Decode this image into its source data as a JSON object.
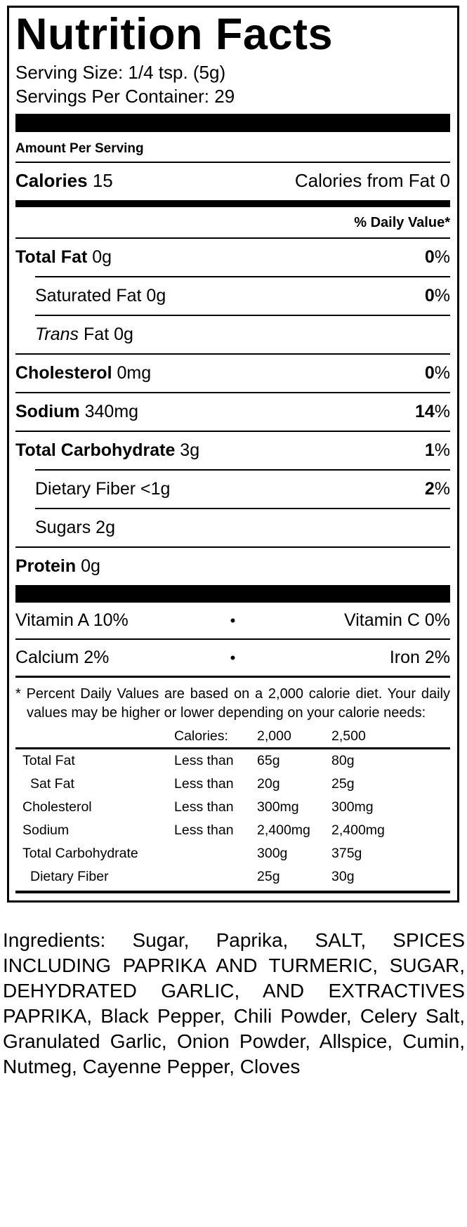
{
  "label": {
    "title": "Nutrition Facts",
    "serving_size": "Serving Size: 1/4 tsp. (5g)",
    "servings_per_container": "Servings Per Container: 29",
    "amount_per_serving": "Amount Per Serving",
    "calories": {
      "label": "Calories",
      "value": "15",
      "from_fat_label": "Calories from Fat",
      "from_fat_value": "0"
    },
    "daily_value_header": "% Daily Value*",
    "nutrients": [
      {
        "name": "Total Fat",
        "amount": "0g",
        "dv": "0%",
        "bold": true,
        "indent": false
      },
      {
        "name": "Saturated Fat",
        "amount": "0g",
        "dv": "0%",
        "bold": false,
        "indent": true
      },
      {
        "name_italic": "Trans",
        "name": "Fat",
        "amount": "0g",
        "dv": null,
        "bold": false,
        "indent": true
      },
      {
        "name": "Cholesterol",
        "amount": "0mg",
        "dv": "0%",
        "bold": true,
        "indent": false
      },
      {
        "name": "Sodium",
        "amount": "340mg",
        "dv": "14%",
        "bold": true,
        "indent": false
      },
      {
        "name": "Total Carbohydrate",
        "amount": "3g",
        "dv": "1%",
        "bold": true,
        "indent": false
      },
      {
        "name": "Dietary Fiber",
        "amount": "<1g",
        "dv": "2%",
        "bold": false,
        "indent": true
      },
      {
        "name": "Sugars",
        "amount": "2g",
        "dv": null,
        "bold": false,
        "indent": true
      },
      {
        "name": "Protein",
        "amount": "0g",
        "dv": null,
        "bold": true,
        "indent": false
      }
    ],
    "vitamin_bullet": "•",
    "vitamins": [
      {
        "left": "Vitamin A 10%",
        "right": "Vitamin C 0%"
      },
      {
        "left": "Calcium 2%",
        "right": "Iron 2%"
      }
    ],
    "footnote": {
      "star": "*",
      "text": "Percent Daily Values are based on a 2,000 calorie diet. Your daily values may be higher or lower depending on your calorie needs:"
    },
    "dv_table": {
      "header": {
        "calories_label": "Calories:",
        "col_2000": "2,000",
        "col_2500": "2,500"
      },
      "rows": [
        {
          "name": "Total Fat",
          "qualifier": "Less than",
          "v2000": "65g",
          "v2500": "80g",
          "indent": false
        },
        {
          "name": "Sat Fat",
          "qualifier": "Less than",
          "v2000": "20g",
          "v2500": "25g",
          "indent": true
        },
        {
          "name": "Cholesterol",
          "qualifier": "Less than",
          "v2000": "300mg",
          "v2500": "300mg",
          "indent": false
        },
        {
          "name": "Sodium",
          "qualifier": "Less than",
          "v2000": "2,400mg",
          "v2500": "2,400mg",
          "indent": false
        },
        {
          "name": "Total Carbohydrate",
          "qualifier": "",
          "v2000": "300g",
          "v2500": "375g",
          "indent": false
        },
        {
          "name": "Dietary Fiber",
          "qualifier": "",
          "v2000": "25g",
          "v2500": "30g",
          "indent": true
        }
      ]
    }
  },
  "ingredients": "Ingredients: Sugar, Paprika, SALT, SPICES INCLUDING PAPRIKA AND TURMERIC, SUGAR, DEHYDRATED GARLIC, AND EXTRACTIVES PAPRIKA, Black Pepper, Chili Powder, Celery Salt, Granulated Garlic, Onion Powder, Allspice, Cumin, Nutmeg, Cayenne Pepper, Cloves"
}
